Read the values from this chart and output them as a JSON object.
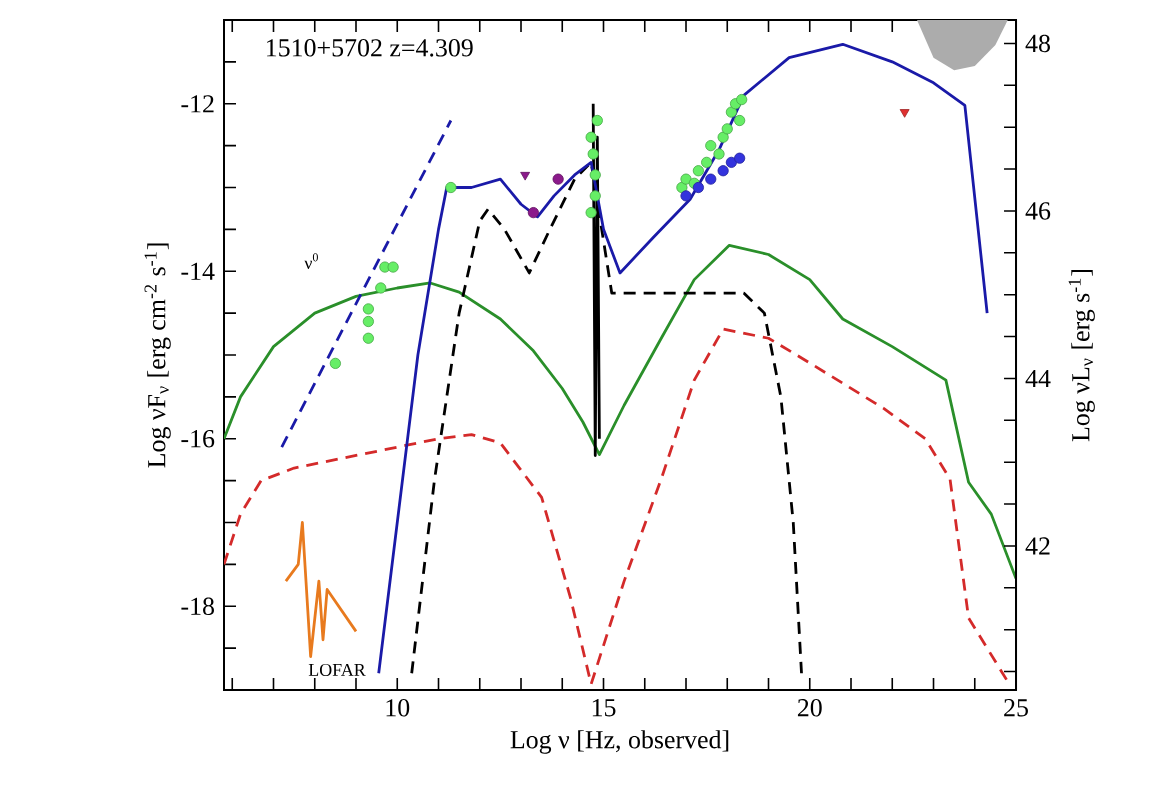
{
  "chart_data": {
    "type": "line",
    "title": "1510+5702 z=4.309",
    "xlabel": "Log ν [Hz, observed]",
    "ylabel": "Log νF$_{ν}$ [erg cm$^{-2}$ s$^{-1}$]",
    "y2label": "Log νL$_{ν}$ [erg s$^{-1}$]",
    "xlim": [
      5.8,
      25
    ],
    "ylim": [
      -19,
      -11
    ],
    "y2lim": [
      40.28,
      48.28
    ],
    "xticks": [
      {
        "value": 6,
        "label": null
      },
      {
        "value": 7,
        "label": null
      },
      {
        "value": 8,
        "label": null
      },
      {
        "value": 9,
        "label": null
      },
      10,
      {
        "value": 11,
        "label": null
      },
      {
        "value": 12,
        "label": null
      },
      {
        "value": 13,
        "label": null
      },
      {
        "value": 14,
        "label": null
      },
      15,
      {
        "value": 16,
        "label": null
      },
      {
        "value": 17,
        "label": null
      },
      {
        "value": 18,
        "label": null
      },
      {
        "value": 19,
        "label": null
      },
      20,
      {
        "value": 21,
        "label": null
      },
      {
        "value": 22,
        "label": null
      },
      {
        "value": 23,
        "label": null
      },
      {
        "value": 24,
        "label": null
      },
      25
    ],
    "yticks": [
      {
        "value": -18.5,
        "label": null
      },
      -18,
      {
        "value": -17.5,
        "label": null
      },
      {
        "value": -17,
        "label": null
      },
      {
        "value": -16.5,
        "label": null
      },
      -16,
      {
        "value": -15.5,
        "label": null
      },
      {
        "value": -15,
        "label": null
      },
      {
        "value": -14.5,
        "label": null
      },
      -14,
      {
        "value": -13.5,
        "label": null
      },
      {
        "value": -13,
        "label": null
      },
      {
        "value": -12.5,
        "label": null
      },
      -12,
      {
        "value": -11.5,
        "label": null
      }
    ],
    "y2ticks": [
      {
        "value": 40.5,
        "label": null
      },
      {
        "value": 41,
        "label": null
      },
      {
        "value": 41.5,
        "label": null
      },
      42,
      {
        "value": 42.5,
        "label": null
      },
      {
        "value": 43,
        "label": null
      },
      {
        "value": 43.5,
        "label": null
      },
      44,
      {
        "value": 44.5,
        "label": null
      },
      {
        "value": 45,
        "label": null
      },
      {
        "value": 45.5,
        "label": null
      },
      46,
      {
        "value": 46.5,
        "label": null
      },
      {
        "value": 47,
        "label": null
      },
      {
        "value": 47.5,
        "label": null
      },
      48
    ],
    "grid": false,
    "series": [
      {
        "color": "#2a8f2a",
        "line_style": "solid",
        "x": [
          5.8,
          6.2,
          7.0,
          8.0,
          9.0,
          10.0,
          10.8,
          11.5,
          12.5,
          13.3,
          14.0,
          14.5,
          14.9,
          15.5,
          16.4,
          17.2,
          18.05,
          19.0,
          20.0,
          20.8,
          22.0,
          23.3,
          23.85,
          24.4,
          25.0
        ],
        "values": [
          -16.0,
          -15.5,
          -14.9,
          -14.5,
          -14.3,
          -14.2,
          -14.14,
          -14.25,
          -14.57,
          -14.95,
          -15.4,
          -15.8,
          -16.19,
          -15.6,
          -14.8,
          -14.1,
          -13.69,
          -13.8,
          -14.1,
          -14.57,
          -14.9,
          -15.3,
          -16.52,
          -16.9,
          -17.67
        ]
      },
      {
        "color": "#d42a2a",
        "line_style": "dashed",
        "x": [
          5.8,
          6.2,
          6.7,
          7.5,
          8.6,
          10.0,
          11.0,
          11.8,
          12.5,
          13.5,
          14.2,
          14.7,
          15.5,
          16.4,
          17.2,
          17.9,
          19.0,
          19.85,
          21.8,
          22.8,
          23.4,
          23.85,
          24.8
        ],
        "values": [
          -17.5,
          -16.9,
          -16.5,
          -16.35,
          -16.24,
          -16.1,
          -16.0,
          -15.95,
          -16.05,
          -16.7,
          -17.9,
          -18.93,
          -17.7,
          -16.48,
          -15.3,
          -14.69,
          -14.8,
          -15.05,
          -15.64,
          -16.0,
          -16.48,
          -18.14,
          -18.9
        ]
      },
      {
        "color": "#000000",
        "line_style": "dashed",
        "x": [
          10.35,
          10.9,
          11.5,
          12.0,
          12.2,
          12.6,
          13.2,
          13.7,
          14.3,
          14.7,
          15.2,
          16.5,
          18.4,
          18.9,
          19.3,
          19.6,
          19.8
        ],
        "values": [
          -18.8,
          -16.5,
          -14.5,
          -13.4,
          -13.26,
          -13.5,
          -14.02,
          -13.5,
          -12.9,
          -12.7,
          -14.26,
          -14.26,
          -14.26,
          -14.5,
          -15.5,
          -17.0,
          -18.8
        ]
      },
      {
        "color": "#000000",
        "line_style": "solid",
        "x": [
          14.75,
          14.8,
          14.85,
          14.9
        ],
        "values": [
          -12.0,
          -16.2,
          -12.4,
          -16.0
        ]
      },
      {
        "color": "#1a1aa8",
        "line_style": "solid",
        "x": [
          9.55,
          10.0,
          10.5,
          11.0,
          11.2,
          11.8,
          12.5,
          13.0,
          13.4,
          13.8,
          14.3,
          14.7,
          15.0,
          15.4,
          16.2,
          17.1,
          17.8,
          18.4,
          19.5,
          20.8,
          22.0,
          23.0,
          23.76,
          24.3
        ],
        "values": [
          -18.8,
          -17.0,
          -15.0,
          -13.5,
          -13.0,
          -13.0,
          -12.9,
          -13.2,
          -13.35,
          -13.1,
          -12.85,
          -12.7,
          -13.5,
          -14.02,
          -13.6,
          -13.14,
          -12.55,
          -11.9,
          -11.45,
          -11.29,
          -11.5,
          -11.75,
          -12.02,
          -14.5
        ]
      },
      {
        "color": "#1a1aa8",
        "line_style": "dashed",
        "x": [
          7.2,
          11.3
        ],
        "values": [
          -16.1,
          -12.2
        ]
      },
      {
        "color": "#e87a1e",
        "line_style": "solid",
        "x": [
          7.3,
          7.6,
          7.7,
          7.9,
          8.1,
          8.2,
          8.3,
          9.0
        ],
        "values": [
          -17.7,
          -17.5,
          -17.0,
          -18.6,
          -17.7,
          -18.4,
          -17.8,
          -18.3
        ]
      },
      {
        "type": "scatter",
        "color": "#66ee66",
        "marker": "circle",
        "x": [
          8.5,
          9.3,
          9.3,
          9.3,
          9.6,
          9.7,
          9.9,
          11.3,
          14.7,
          14.75,
          14.8,
          14.8,
          14.85,
          14.7,
          16.9,
          17.0,
          17.2,
          17.3,
          17.5,
          17.6,
          17.8,
          17.9,
          18.0,
          18.1,
          18.2,
          18.3,
          18.35
        ],
        "values": [
          -15.1,
          -14.8,
          -14.6,
          -14.45,
          -14.2,
          -13.95,
          -13.95,
          -13.0,
          -12.4,
          -12.6,
          -12.85,
          -13.1,
          -12.2,
          -13.3,
          -13.0,
          -12.9,
          -12.95,
          -12.8,
          -12.7,
          -12.5,
          -12.6,
          -12.4,
          -12.3,
          -12.1,
          -12.0,
          -12.2,
          -11.95
        ]
      },
      {
        "type": "scatter",
        "color": "#3333dd",
        "marker": "circle",
        "x": [
          17.0,
          17.3,
          17.6,
          17.9,
          18.1,
          18.3
        ],
        "values": [
          -13.1,
          -13.0,
          -12.9,
          -12.8,
          -12.7,
          -12.65
        ]
      },
      {
        "type": "scatter",
        "color": "#8b1a8b",
        "marker": "circle",
        "x": [
          13.3,
          13.9
        ],
        "values": [
          -13.3,
          -12.9
        ]
      },
      {
        "type": "scatter",
        "color": "#8b1a8b",
        "marker": "triangle",
        "x": [
          13.1
        ],
        "values": [
          -12.85
        ]
      },
      {
        "type": "scatter",
        "color": "#e03030",
        "marker": "triangle",
        "x": [
          22.3
        ],
        "values": [
          -12.1
        ]
      }
    ],
    "annotations": [
      "ν$^{0}$",
      "LOFAR"
    ]
  }
}
